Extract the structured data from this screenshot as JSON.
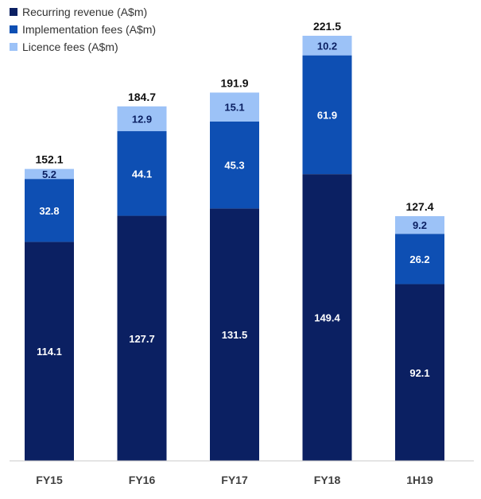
{
  "chart_data": {
    "type": "bar",
    "stacked": true,
    "categories": [
      "FY15",
      "FY16",
      "FY17",
      "FY18",
      "1H19"
    ],
    "series": [
      {
        "name": "Recurring revenue (A$m)",
        "values": [
          114.1,
          127.7,
          131.5,
          149.4,
          92.1
        ],
        "color": "#0b2062",
        "label_color": "#ffffff"
      },
      {
        "name": "Implementation fees (A$m)",
        "values": [
          32.8,
          44.1,
          45.3,
          61.9,
          26.2
        ],
        "color": "#0e4fb3",
        "label_color": "#ffffff"
      },
      {
        "name": "Licence fees (A$m)",
        "values": [
          5.2,
          12.9,
          15.1,
          10.2,
          9.2
        ],
        "color": "#9cc2f7",
        "label_color": "#0b2062"
      }
    ],
    "totals": [
      152.1,
      184.7,
      191.9,
      221.5,
      127.4
    ],
    "ylim": [
      0,
      221.5
    ],
    "grid": false,
    "legend_position": "top-left"
  }
}
